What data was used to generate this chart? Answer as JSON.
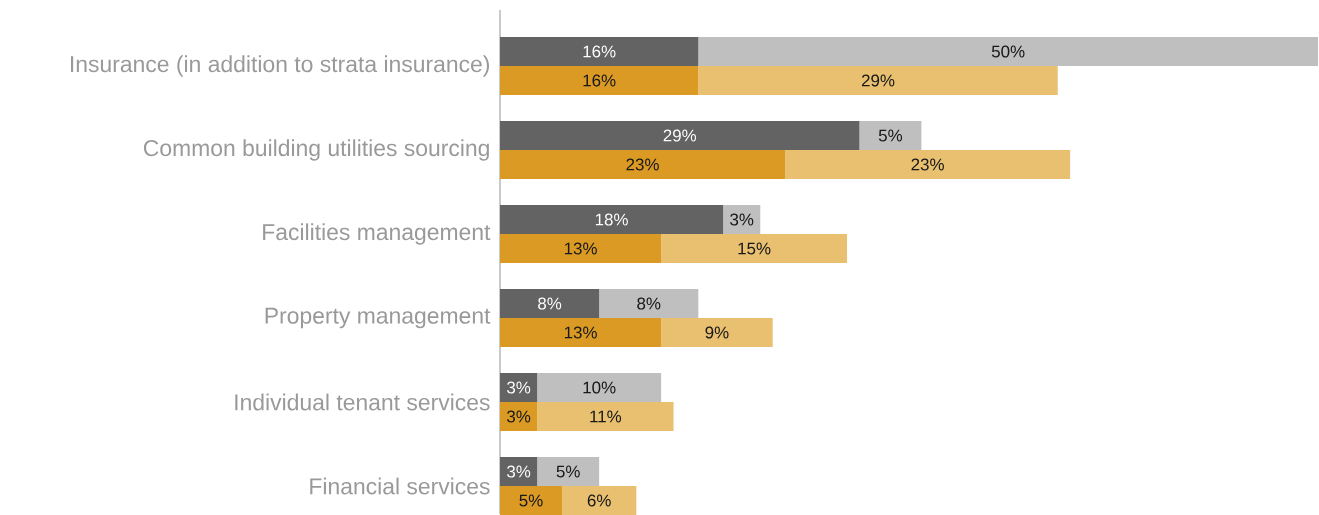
{
  "chart_data": [
    {
      "type": "bar",
      "orientation": "horizontal",
      "stacked": true,
      "tick_labels": "y",
      "categories": [
        "Insurance (in addition to strata insurance)",
        "Common building utilities sourcing",
        "Facilities management",
        "Property management",
        "Individual tenant services",
        "Financial services"
      ],
      "series": [
        {
          "color": "#636363",
          "values": [
            16,
            29,
            18,
            8,
            3,
            3
          ],
          "value_labels": [
            "16%",
            "29%",
            "18%",
            "8%",
            "3%",
            "3%"
          ]
        },
        {
          "color": "#bfbfbf",
          "values": [
            50,
            5,
            3,
            8,
            10,
            5
          ],
          "value_labels": [
            "50%",
            "5%",
            "3%",
            "8%",
            "10%",
            "5%"
          ]
        }
      ]
    },
    {
      "type": "bar",
      "orientation": "horizontal",
      "stacked": true,
      "tick_labels": false,
      "categories": [
        null,
        null,
        null,
        null,
        null,
        null
      ],
      "series": [
        {
          "color": "#db9a24",
          "values": [
            16,
            23,
            13,
            13,
            3,
            5
          ],
          "value_labels": [
            "16%",
            "23%",
            "13%",
            "13%",
            "3%",
            "5%"
          ]
        },
        {
          "color": "#e9c070",
          "values": [
            29,
            23,
            15,
            9,
            11,
            6
          ],
          "value_labels": [
            "29%",
            "23%",
            "15%",
            "9%",
            "11%",
            "6%"
          ]
        }
      ]
    }
  ]
}
